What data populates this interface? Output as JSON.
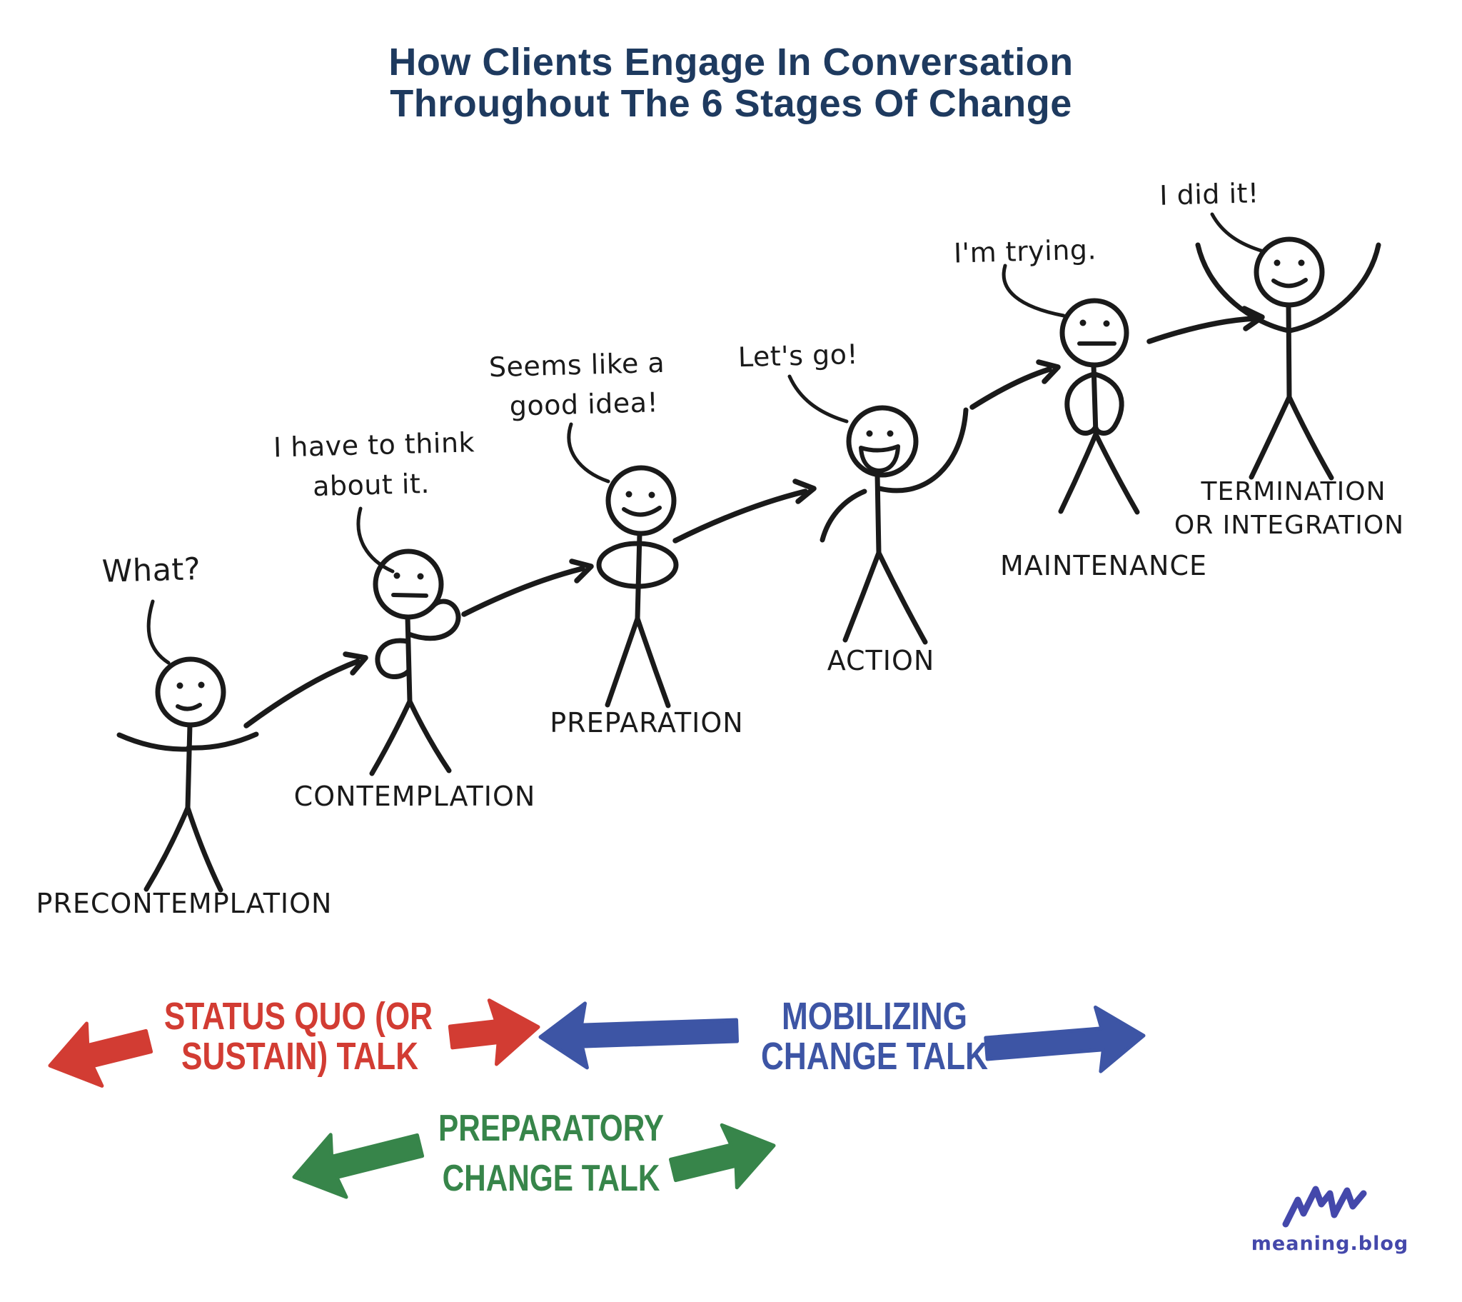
{
  "title": {
    "line1": "How Clients Engage In Conversation",
    "line2": "Throughout The 6 Stages Of Change"
  },
  "stages": [
    {
      "label_lines": [
        "PRECONTEMPLATION"
      ],
      "speech_lines": [
        "What?"
      ]
    },
    {
      "label_lines": [
        "CONTEMPLATION"
      ],
      "speech_lines": [
        "I have to think",
        "about it."
      ]
    },
    {
      "label_lines": [
        "PREPARATION"
      ],
      "speech_lines": [
        "Seems like a",
        "good idea!"
      ]
    },
    {
      "label_lines": [
        "ACTION"
      ],
      "speech_lines": [
        "Let's go!"
      ]
    },
    {
      "label_lines": [
        "MAINTENANCE"
      ],
      "speech_lines": [
        "I'm trying."
      ]
    },
    {
      "label_lines": [
        "TERMINATION",
        "OR INTEGRATION"
      ],
      "speech_lines": [
        "I did it!"
      ]
    }
  ],
  "talk_bands": [
    {
      "lines": [
        "STATUS QUO (OR",
        "SUSTAIN) TALK"
      ],
      "color": "#d23c33"
    },
    {
      "lines": [
        "MOBILIZING",
        "CHANGE TALK"
      ],
      "color": "#3d55a5"
    },
    {
      "lines": [
        "PREPARATORY",
        "CHANGE TALK"
      ],
      "color": "#37854a"
    }
  ],
  "logo": {
    "wordmark": "meaning.blog",
    "color": "#4448ab"
  },
  "palette": {
    "background": "#ffffff",
    "ink": "#1a1a1a",
    "title": "#1e3a5f"
  }
}
